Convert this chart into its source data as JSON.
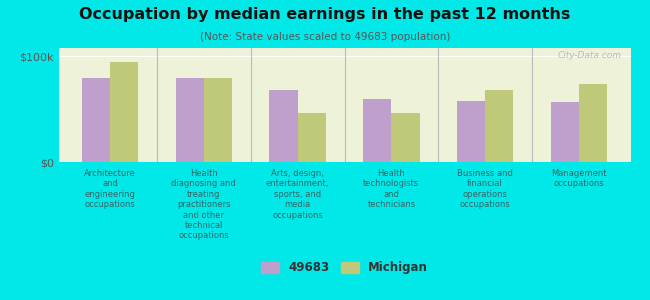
{
  "title": "Occupation by median earnings in the past 12 months",
  "subtitle": "(Note: State values scaled to 49683 population)",
  "background_color": "#00e8e8",
  "plot_bg_color": "#eef2d8",
  "categories": [
    "Architecture\nand\nengineering\noccupations",
    "Health\ndiagnosing and\ntreating\npractitioners\nand other\ntechnical\noccupations",
    "Arts, design,\nentertainment,\nsports, and\nmedia\noccupations",
    "Health\ntechnologists\nand\ntechnicians",
    "Business and\nfinancial\noperations\noccupations",
    "Management\noccupations"
  ],
  "values_49683": [
    80000,
    80000,
    68000,
    60000,
    58000,
    57000
  ],
  "values_michigan": [
    95000,
    80000,
    46000,
    46000,
    68000,
    74000
  ],
  "color_49683": "#bf9fcc",
  "color_michigan": "#c0c87a",
  "ylim": [
    0,
    108000
  ],
  "yticks": [
    0,
    100000
  ],
  "ytick_labels": [
    "$0",
    "$100k"
  ],
  "legend_49683": "49683",
  "legend_michigan": "Michigan",
  "watermark": "City-Data.com"
}
